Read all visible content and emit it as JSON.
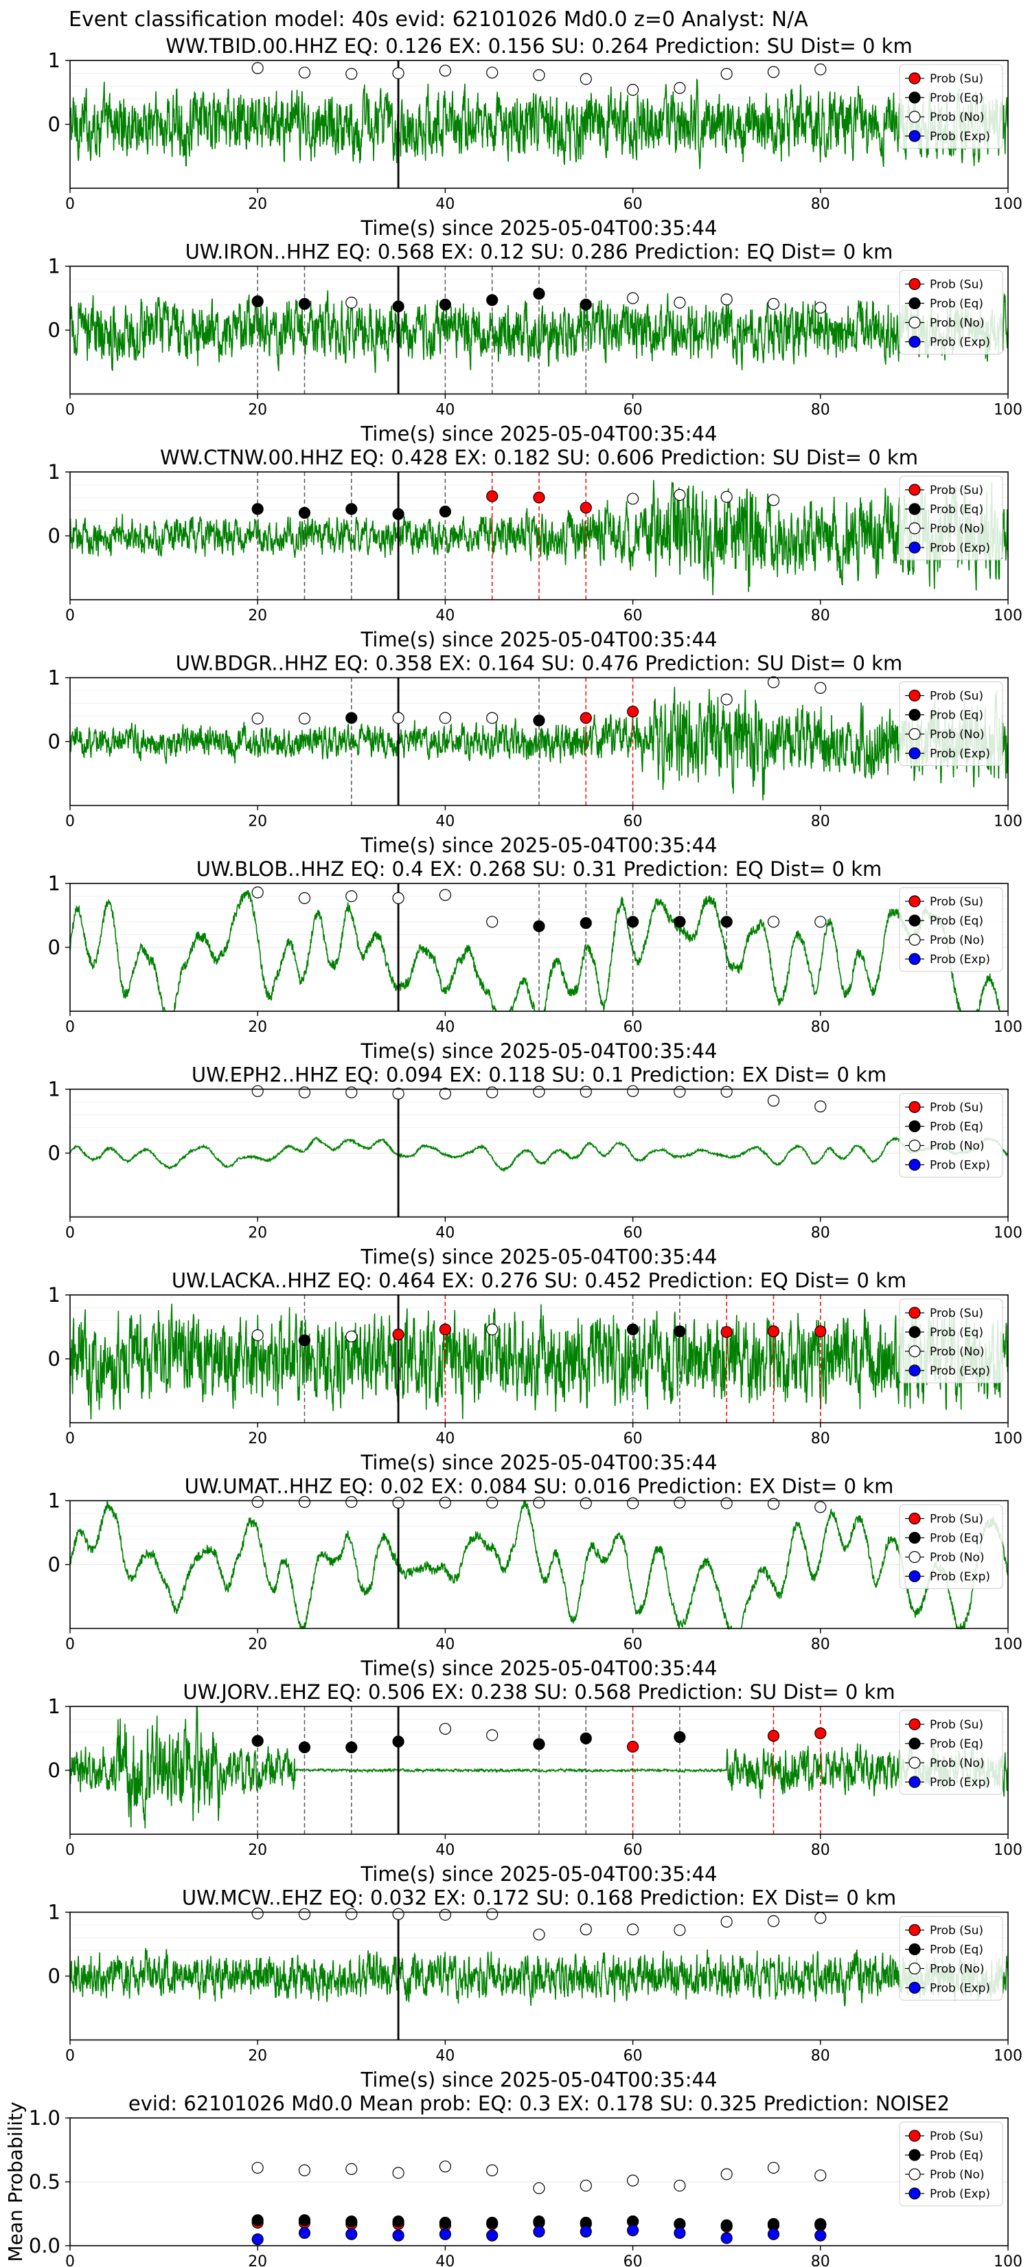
{
  "figure_title": "Event classification model: 40s evid: 62101026 Md0.0 z=0 Analyst: N/A",
  "xlabel": "Time(s) since 2025-05-04T00:35:44",
  "legend": [
    "Prob (Su)",
    "Prob (Eq)",
    "Prob (No)",
    "Prob (Exp)"
  ],
  "colors": {
    "trace": "#008000",
    "su": "#ff0000",
    "eq": "#000000",
    "no": "#ffffff",
    "exp": "#0000ff",
    "event_line": "#000000"
  },
  "chart_data": [
    {
      "type": "line",
      "title": "WW.TBID.00.HHZ   EQ: 0.126  EX: 0.156  SU: 0.264   Prediction: SU    Dist= 0 km",
      "xlim": [
        0,
        100
      ],
      "ylim": [
        -1,
        1
      ],
      "xticks": [
        0,
        20,
        40,
        60,
        80,
        100
      ],
      "yticks": [
        0,
        1
      ],
      "event_time": 35,
      "amp": 0.45,
      "style": "noise",
      "quiet": [],
      "points": [
        [
          20,
          0.88,
          "no"
        ],
        [
          25,
          0.81,
          "no"
        ],
        [
          30,
          0.79,
          "no"
        ],
        [
          35,
          0.8,
          "no"
        ],
        [
          40,
          0.84,
          "no"
        ],
        [
          45,
          0.81,
          "no"
        ],
        [
          50,
          0.77,
          "no"
        ],
        [
          55,
          0.71,
          "no"
        ],
        [
          60,
          0.54,
          "no"
        ],
        [
          65,
          0.57,
          "no"
        ],
        [
          70,
          0.79,
          "no"
        ],
        [
          75,
          0.82,
          "no"
        ],
        [
          80,
          0.86,
          "no"
        ]
      ],
      "vlines": []
    },
    {
      "type": "line",
      "title": "UW.IRON..HHZ   EQ: 0.568  EX: 0.12  SU: 0.286   Prediction: EQ    Dist= 0 km",
      "xlim": [
        0,
        100
      ],
      "ylim": [
        -1,
        1
      ],
      "xticks": [
        0,
        20,
        40,
        60,
        80,
        100
      ],
      "yticks": [
        0,
        1
      ],
      "event_time": 35,
      "amp": 0.4,
      "style": "noise",
      "quiet": [],
      "points": [
        [
          20,
          0.45,
          "eq"
        ],
        [
          25,
          0.41,
          "eq"
        ],
        [
          30,
          0.43,
          "no"
        ],
        [
          35,
          0.37,
          "eq"
        ],
        [
          40,
          0.4,
          "eq"
        ],
        [
          45,
          0.47,
          "eq"
        ],
        [
          50,
          0.57,
          "eq"
        ],
        [
          55,
          0.4,
          "eq"
        ],
        [
          60,
          0.5,
          "no"
        ],
        [
          65,
          0.43,
          "no"
        ],
        [
          70,
          0.48,
          "no"
        ],
        [
          75,
          0.41,
          "no"
        ],
        [
          80,
          0.35,
          "no"
        ]
      ],
      "vlines": [
        [
          20,
          "eq"
        ],
        [
          25,
          "eq"
        ],
        [
          40,
          "eq"
        ],
        [
          45,
          "eq"
        ],
        [
          50,
          "eq"
        ],
        [
          55,
          "eq"
        ]
      ]
    },
    {
      "type": "line",
      "title": "WW.CTNW.00.HHZ   EQ: 0.428  EX: 0.182  SU: 0.606   Prediction: SU    Dist= 0 km",
      "xlim": [
        0,
        100
      ],
      "ylim": [
        -1,
        1
      ],
      "xticks": [
        0,
        20,
        40,
        60,
        80,
        100
      ],
      "yticks": [
        0,
        1
      ],
      "event_time": 35,
      "amp": 0.45,
      "style": "growing",
      "quiet": [],
      "points": [
        [
          20,
          0.42,
          "eq"
        ],
        [
          25,
          0.36,
          "eq"
        ],
        [
          30,
          0.42,
          "eq"
        ],
        [
          35,
          0.34,
          "eq"
        ],
        [
          40,
          0.38,
          "eq"
        ],
        [
          45,
          0.62,
          "su"
        ],
        [
          50,
          0.6,
          "su"
        ],
        [
          55,
          0.44,
          "su"
        ],
        [
          60,
          0.58,
          "no"
        ],
        [
          65,
          0.64,
          "no"
        ],
        [
          70,
          0.61,
          "no"
        ],
        [
          75,
          0.56,
          "no"
        ]
      ],
      "vlines": [
        [
          20,
          "eq"
        ],
        [
          25,
          "eq"
        ],
        [
          30,
          "eq"
        ],
        [
          40,
          "eq"
        ],
        [
          45,
          "su"
        ],
        [
          50,
          "su"
        ],
        [
          55,
          "su"
        ]
      ]
    },
    {
      "type": "line",
      "title": "UW.BDGR..HHZ   EQ: 0.358  EX: 0.164  SU: 0.476   Prediction: SU    Dist= 0 km",
      "xlim": [
        0,
        100
      ],
      "ylim": [
        -1,
        1
      ],
      "xticks": [
        0,
        20,
        40,
        60,
        80,
        100
      ],
      "yticks": [
        0,
        1
      ],
      "event_time": 35,
      "amp": 0.4,
      "style": "growing",
      "quiet": [],
      "points": [
        [
          20,
          0.36,
          "no"
        ],
        [
          25,
          0.36,
          "no"
        ],
        [
          30,
          0.37,
          "eq"
        ],
        [
          35,
          0.37,
          "no"
        ],
        [
          40,
          0.37,
          "no"
        ],
        [
          45,
          0.37,
          "no"
        ],
        [
          50,
          0.33,
          "eq"
        ],
        [
          55,
          0.37,
          "su"
        ],
        [
          60,
          0.47,
          "su"
        ],
        [
          70,
          0.66,
          "no"
        ],
        [
          75,
          0.93,
          "no"
        ],
        [
          80,
          0.84,
          "no"
        ]
      ],
      "vlines": [
        [
          30,
          "eq"
        ],
        [
          50,
          "eq"
        ],
        [
          55,
          "su"
        ],
        [
          60,
          "su"
        ]
      ]
    },
    {
      "type": "line",
      "title": "UW.BLOB..HHZ   EQ: 0.4  EX: 0.268  SU: 0.31   Prediction: EQ    Dist= 0 km",
      "xlim": [
        0,
        100
      ],
      "ylim": [
        -1,
        1
      ],
      "xticks": [
        0,
        20,
        40,
        60,
        80,
        100
      ],
      "yticks": [
        0,
        1
      ],
      "event_time": 35,
      "amp": 0.6,
      "style": "wave",
      "quiet": [],
      "points": [
        [
          20,
          0.86,
          "no"
        ],
        [
          25,
          0.77,
          "no"
        ],
        [
          30,
          0.8,
          "no"
        ],
        [
          35,
          0.77,
          "no"
        ],
        [
          40,
          0.82,
          "no"
        ],
        [
          45,
          0.4,
          "no"
        ],
        [
          50,
          0.33,
          "eq"
        ],
        [
          55,
          0.38,
          "eq"
        ],
        [
          60,
          0.4,
          "eq"
        ],
        [
          65,
          0.4,
          "eq"
        ],
        [
          70,
          0.4,
          "eq"
        ],
        [
          75,
          0.4,
          "no"
        ],
        [
          80,
          0.4,
          "no"
        ]
      ],
      "vlines": [
        [
          50,
          "eq"
        ],
        [
          55,
          "eq"
        ],
        [
          60,
          "eq"
        ],
        [
          65,
          "eq"
        ],
        [
          70,
          "eq"
        ]
      ]
    },
    {
      "type": "line",
      "title": "UW.EPH2..HHZ   EQ: 0.094  EX: 0.118  SU: 0.1   Prediction: EX    Dist= 0 km",
      "xlim": [
        0,
        100
      ],
      "ylim": [
        -1,
        1
      ],
      "xticks": [
        0,
        20,
        40,
        60,
        80,
        100
      ],
      "yticks": [
        0,
        1
      ],
      "event_time": 35,
      "amp": 0.13,
      "style": "wave",
      "quiet": [],
      "points": [
        [
          20,
          0.97,
          "no"
        ],
        [
          25,
          0.95,
          "no"
        ],
        [
          30,
          0.95,
          "no"
        ],
        [
          35,
          0.93,
          "no"
        ],
        [
          40,
          0.93,
          "no"
        ],
        [
          45,
          0.95,
          "no"
        ],
        [
          50,
          0.96,
          "no"
        ],
        [
          55,
          0.96,
          "no"
        ],
        [
          60,
          0.97,
          "no"
        ],
        [
          65,
          0.96,
          "no"
        ],
        [
          70,
          0.96,
          "no"
        ],
        [
          75,
          0.82,
          "no"
        ],
        [
          80,
          0.73,
          "no"
        ]
      ],
      "vlines": []
    },
    {
      "type": "line",
      "title": "UW.LACKA..HHZ   EQ: 0.464  EX: 0.276  SU: 0.452   Prediction: EQ    Dist= 0 km",
      "xlim": [
        0,
        100
      ],
      "ylim": [
        -1,
        1
      ],
      "xticks": [
        0,
        20,
        40,
        60,
        80,
        100
      ],
      "yticks": [
        0,
        1
      ],
      "event_time": 35,
      "amp": 0.6,
      "style": "noise",
      "quiet": [],
      "points": [
        [
          20,
          0.37,
          "no"
        ],
        [
          25,
          0.29,
          "eq"
        ],
        [
          30,
          0.35,
          "no"
        ],
        [
          35,
          0.38,
          "su"
        ],
        [
          40,
          0.46,
          "su"
        ],
        [
          45,
          0.46,
          "no"
        ],
        [
          60,
          0.46,
          "eq"
        ],
        [
          65,
          0.43,
          "eq"
        ],
        [
          70,
          0.42,
          "su"
        ],
        [
          75,
          0.43,
          "su"
        ],
        [
          80,
          0.43,
          "su"
        ]
      ],
      "vlines": [
        [
          25,
          "eq"
        ],
        [
          40,
          "su"
        ],
        [
          60,
          "eq"
        ],
        [
          65,
          "eq"
        ],
        [
          70,
          "su"
        ],
        [
          75,
          "su"
        ],
        [
          80,
          "su"
        ]
      ]
    },
    {
      "type": "line",
      "title": "UW.UMAT..HHZ   EQ: 0.02  EX: 0.084  SU: 0.016   Prediction: EX    Dist= 0 km",
      "xlim": [
        0,
        100
      ],
      "ylim": [
        -1,
        1
      ],
      "xticks": [
        0,
        20,
        40,
        60,
        80,
        100
      ],
      "yticks": [
        0,
        1
      ],
      "event_time": 35,
      "amp": 0.55,
      "style": "wave",
      "quiet": [],
      "points": [
        [
          20,
          0.98,
          "no"
        ],
        [
          25,
          0.98,
          "no"
        ],
        [
          30,
          0.98,
          "no"
        ],
        [
          35,
          0.97,
          "no"
        ],
        [
          40,
          0.97,
          "no"
        ],
        [
          45,
          0.97,
          "no"
        ],
        [
          50,
          0.97,
          "no"
        ],
        [
          55,
          0.96,
          "no"
        ],
        [
          60,
          0.96,
          "no"
        ],
        [
          65,
          0.97,
          "no"
        ],
        [
          70,
          0.96,
          "no"
        ],
        [
          75,
          0.95,
          "no"
        ],
        [
          80,
          0.9,
          "no"
        ]
      ],
      "vlines": []
    },
    {
      "type": "line",
      "title": "UW.JORV..EHZ   EQ: 0.506  EX: 0.238  SU: 0.568   Prediction: SU    Dist= 0 km",
      "xlim": [
        0,
        100
      ],
      "ylim": [
        -1,
        1
      ],
      "xticks": [
        0,
        20,
        40,
        60,
        80,
        100
      ],
      "yticks": [
        0,
        1
      ],
      "event_time": 35,
      "amp": 0.3,
      "style": "noise",
      "quiet": [
        [
          24,
          70
        ]
      ],
      "points": [
        [
          20,
          0.46,
          "eq"
        ],
        [
          25,
          0.36,
          "eq"
        ],
        [
          30,
          0.36,
          "eq"
        ],
        [
          35,
          0.45,
          "eq"
        ],
        [
          40,
          0.65,
          "no"
        ],
        [
          45,
          0.55,
          "no"
        ],
        [
          50,
          0.41,
          "eq"
        ],
        [
          55,
          0.5,
          "eq"
        ],
        [
          60,
          0.37,
          "su"
        ],
        [
          65,
          0.52,
          "eq"
        ],
        [
          75,
          0.54,
          "su"
        ],
        [
          80,
          0.58,
          "su"
        ]
      ],
      "vlines": [
        [
          20,
          "eq"
        ],
        [
          25,
          "eq"
        ],
        [
          30,
          "eq"
        ],
        [
          50,
          "eq"
        ],
        [
          55,
          "eq"
        ],
        [
          60,
          "su"
        ],
        [
          65,
          "eq"
        ],
        [
          75,
          "su"
        ],
        [
          80,
          "su"
        ]
      ]
    },
    {
      "type": "line",
      "title": "UW.MCW..EHZ   EQ: 0.032  EX: 0.172  SU: 0.168   Prediction: EX    Dist= 0 km",
      "xlim": [
        0,
        100
      ],
      "ylim": [
        -1,
        1
      ],
      "xticks": [
        0,
        20,
        40,
        60,
        80,
        100
      ],
      "yticks": [
        0,
        1
      ],
      "event_time": 35,
      "amp": 0.3,
      "style": "noise",
      "quiet": [],
      "points": [
        [
          20,
          0.98,
          "no"
        ],
        [
          25,
          0.97,
          "no"
        ],
        [
          30,
          0.97,
          "no"
        ],
        [
          35,
          0.97,
          "no"
        ],
        [
          40,
          0.96,
          "no"
        ],
        [
          45,
          0.97,
          "no"
        ],
        [
          50,
          0.65,
          "no"
        ],
        [
          55,
          0.73,
          "no"
        ],
        [
          60,
          0.73,
          "no"
        ],
        [
          65,
          0.72,
          "no"
        ],
        [
          70,
          0.85,
          "no"
        ],
        [
          75,
          0.86,
          "no"
        ],
        [
          80,
          0.91,
          "no"
        ]
      ],
      "vlines": []
    },
    {
      "type": "scatter",
      "title": "evid: 62101026   Md0.0    Mean prob:    EQ: 0.3  EX: 0.178  SU: 0.325   Prediction: NOISE2",
      "ylabel": "Mean Probability",
      "xlim": [
        0,
        100
      ],
      "ylim": [
        0,
        1
      ],
      "xticks": [
        0,
        20,
        40,
        60,
        80,
        100
      ],
      "yticks": [
        "0.0",
        "0.5",
        "1.0"
      ],
      "x": [
        20,
        25,
        30,
        35,
        40,
        45,
        50,
        55,
        60,
        65,
        70,
        75,
        80
      ],
      "series": [
        {
          "name": "Prob (No)",
          "color": "#ffffff",
          "values": [
            0.61,
            0.59,
            0.6,
            0.57,
            0.62,
            0.59,
            0.45,
            0.47,
            0.51,
            0.47,
            0.56,
            0.61,
            0.55
          ]
        },
        {
          "name": "Prob (Su)",
          "color": "#ff0000",
          "values": [
            0.18,
            0.18,
            0.17,
            0.17,
            0.16,
            0.17,
            0.18,
            0.17,
            0.19,
            0.17,
            0.15,
            0.16,
            0.16
          ]
        },
        {
          "name": "Prob (Eq)",
          "color": "#000000",
          "values": [
            0.2,
            0.2,
            0.19,
            0.19,
            0.18,
            0.18,
            0.19,
            0.18,
            0.19,
            0.17,
            0.16,
            0.17,
            0.17
          ]
        },
        {
          "name": "Prob (Exp)",
          "color": "#0000ff",
          "values": [
            0.05,
            0.1,
            0.09,
            0.08,
            0.09,
            0.08,
            0.11,
            0.11,
            0.12,
            0.1,
            0.06,
            0.09,
            0.08
          ]
        }
      ]
    }
  ]
}
